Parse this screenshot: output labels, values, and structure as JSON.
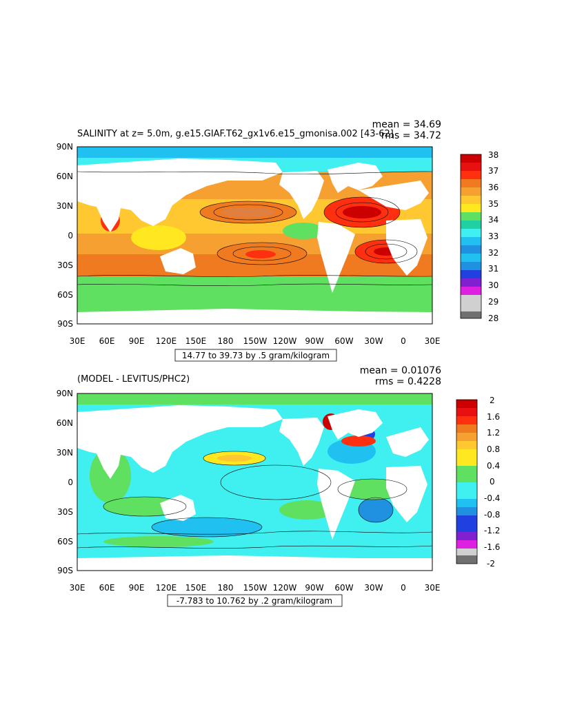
{
  "panels": [
    {
      "title": "SALINITY at z=    5.0m, g.e15.GIAF.T62_gx1v6.e15_gmonisa.002 [43-62]",
      "mean_label": "mean = 34.69",
      "rms_label": "rms = 34.72",
      "contour_info": "14.77 to 39.73 by .5 gram/kilogram",
      "colorbar": {
        "labels": [
          "38",
          "37",
          "36",
          "35",
          "34",
          "33",
          "32",
          "31",
          "30",
          "29",
          "28"
        ],
        "colors": [
          "#cc0000",
          "#e81010",
          "#ff3010",
          "#f07a20",
          "#f5a030",
          "#ffc830",
          "#ffe820",
          "#60e060",
          "#20d0a0",
          "#40f0f0",
          "#20c0f0",
          "#2090e0",
          "#2040e0",
          "#8020d0",
          "#e020e0",
          "#d0d0d0",
          "#707070"
        ]
      }
    },
    {
      "title": "(MODEL - LEVITUS/PHC2)",
      "mean_label": "mean = 0.01076",
      "rms_label": "rms = 0.4228",
      "contour_info": "-7.783 to 10.762 by .2 gram/kilogram",
      "colorbar": {
        "labels": [
          "2",
          "1.6",
          "1.2",
          "0.8",
          "0.4",
          "0",
          "-0.4",
          "-0.8",
          "-1.2",
          "-1.6",
          "-2"
        ],
        "colors": [
          "#cc0000",
          "#e81010",
          "#ff3010",
          "#f07a20",
          "#f5a030",
          "#ffc830",
          "#ffe820",
          "#60e060",
          "#20d0a0",
          "#40f0f0",
          "#20c0f0",
          "#2090e0",
          "#2040e0",
          "#8020d0",
          "#e020e0",
          "#d0d0d0",
          "#707070"
        ]
      }
    }
  ],
  "lat_labels": [
    "90N",
    "60N",
    "30N",
    "0",
    "30S",
    "60S",
    "90S"
  ],
  "lon_labels": [
    "30E",
    "60E",
    "90E",
    "120E",
    "150E",
    "180",
    "150W",
    "120W",
    "90W",
    "60W",
    "30W",
    "0",
    "30E"
  ],
  "land_color": "#ffffff"
}
